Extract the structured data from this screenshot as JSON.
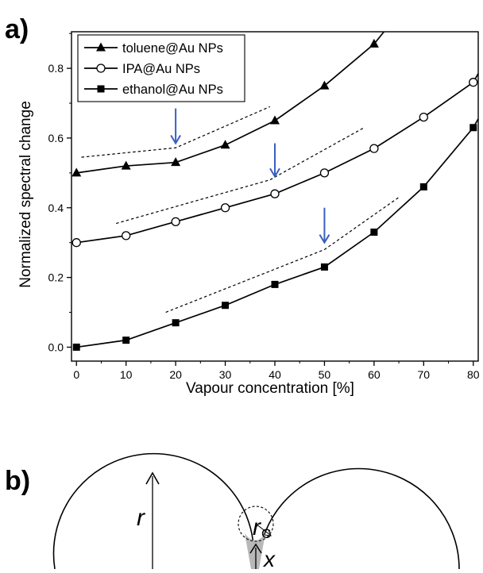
{
  "panel_a_label": "a)",
  "panel_b_label": "b)",
  "chart_data": {
    "type": "line",
    "title": "",
    "xlabel": "Vapour concentration [%]",
    "ylabel": "Normalized spectral change",
    "xlim": [
      -1,
      81
    ],
    "ylim": [
      -0.04,
      0.905
    ],
    "xticks": [
      0,
      10,
      20,
      30,
      40,
      50,
      60,
      70,
      80
    ],
    "yticks": [
      0.0,
      0.2,
      0.4,
      0.6,
      0.8
    ],
    "tick_labels_x": [
      "0",
      "10",
      "20",
      "30",
      "40",
      "50",
      "60",
      "70",
      "80"
    ],
    "tick_labels_y": [
      "0.0",
      "0.2",
      "0.4",
      "0.6",
      "0.8"
    ],
    "grid": false,
    "legend_position": "top-left",
    "series": [
      {
        "name": "toluene@Au NPs",
        "marker": "triangle",
        "color": "#000000",
        "x": [
          0,
          10,
          20,
          30,
          40,
          50,
          60
        ],
        "y": [
          0.5,
          0.52,
          0.53,
          0.58,
          0.65,
          0.75,
          0.87
        ],
        "line_extends_to": [
          62,
          0.905
        ]
      },
      {
        "name": "IPA@Au NPs",
        "marker": "open-circle",
        "color": "#000000",
        "x": [
          0,
          10,
          20,
          30,
          40,
          50,
          60,
          70,
          80
        ],
        "y": [
          0.3,
          0.32,
          0.36,
          0.4,
          0.44,
          0.5,
          0.57,
          0.66,
          0.76
        ],
        "line_extends_to": [
          81,
          0.785
        ]
      },
      {
        "name": "ethanol@Au NPs",
        "marker": "filled-square",
        "color": "#000000",
        "x": [
          0,
          10,
          20,
          30,
          40,
          50,
          60,
          70,
          80
        ],
        "y": [
          0.0,
          0.02,
          0.07,
          0.12,
          0.18,
          0.23,
          0.33,
          0.46,
          0.63
        ],
        "line_extends_to": [
          81,
          0.655
        ]
      }
    ],
    "guide_lines": [
      {
        "points": [
          [
            1,
            0.545
          ],
          [
            20,
            0.572
          ],
          [
            39,
            0.69
          ]
        ]
      },
      {
        "points": [
          [
            8,
            0.355
          ],
          [
            39,
            0.48
          ],
          [
            58,
            0.63
          ]
        ]
      },
      {
        "points": [
          [
            18,
            0.1
          ],
          [
            50,
            0.28
          ],
          [
            65,
            0.43
          ]
        ]
      }
    ],
    "arrows": [
      {
        "x": 20,
        "y_from": 0.685,
        "y_to": 0.585,
        "color": "#3a5fbf"
      },
      {
        "x": 40,
        "y_from": 0.585,
        "y_to": 0.49,
        "color": "#3a5fbf"
      },
      {
        "x": 50,
        "y_from": 0.4,
        "y_to": 0.3,
        "color": "#3a5fbf"
      }
    ]
  },
  "diagram": {
    "label_r": "r",
    "label_rc": "r",
    "label_rc_sub": "C",
    "label_x": "x"
  }
}
